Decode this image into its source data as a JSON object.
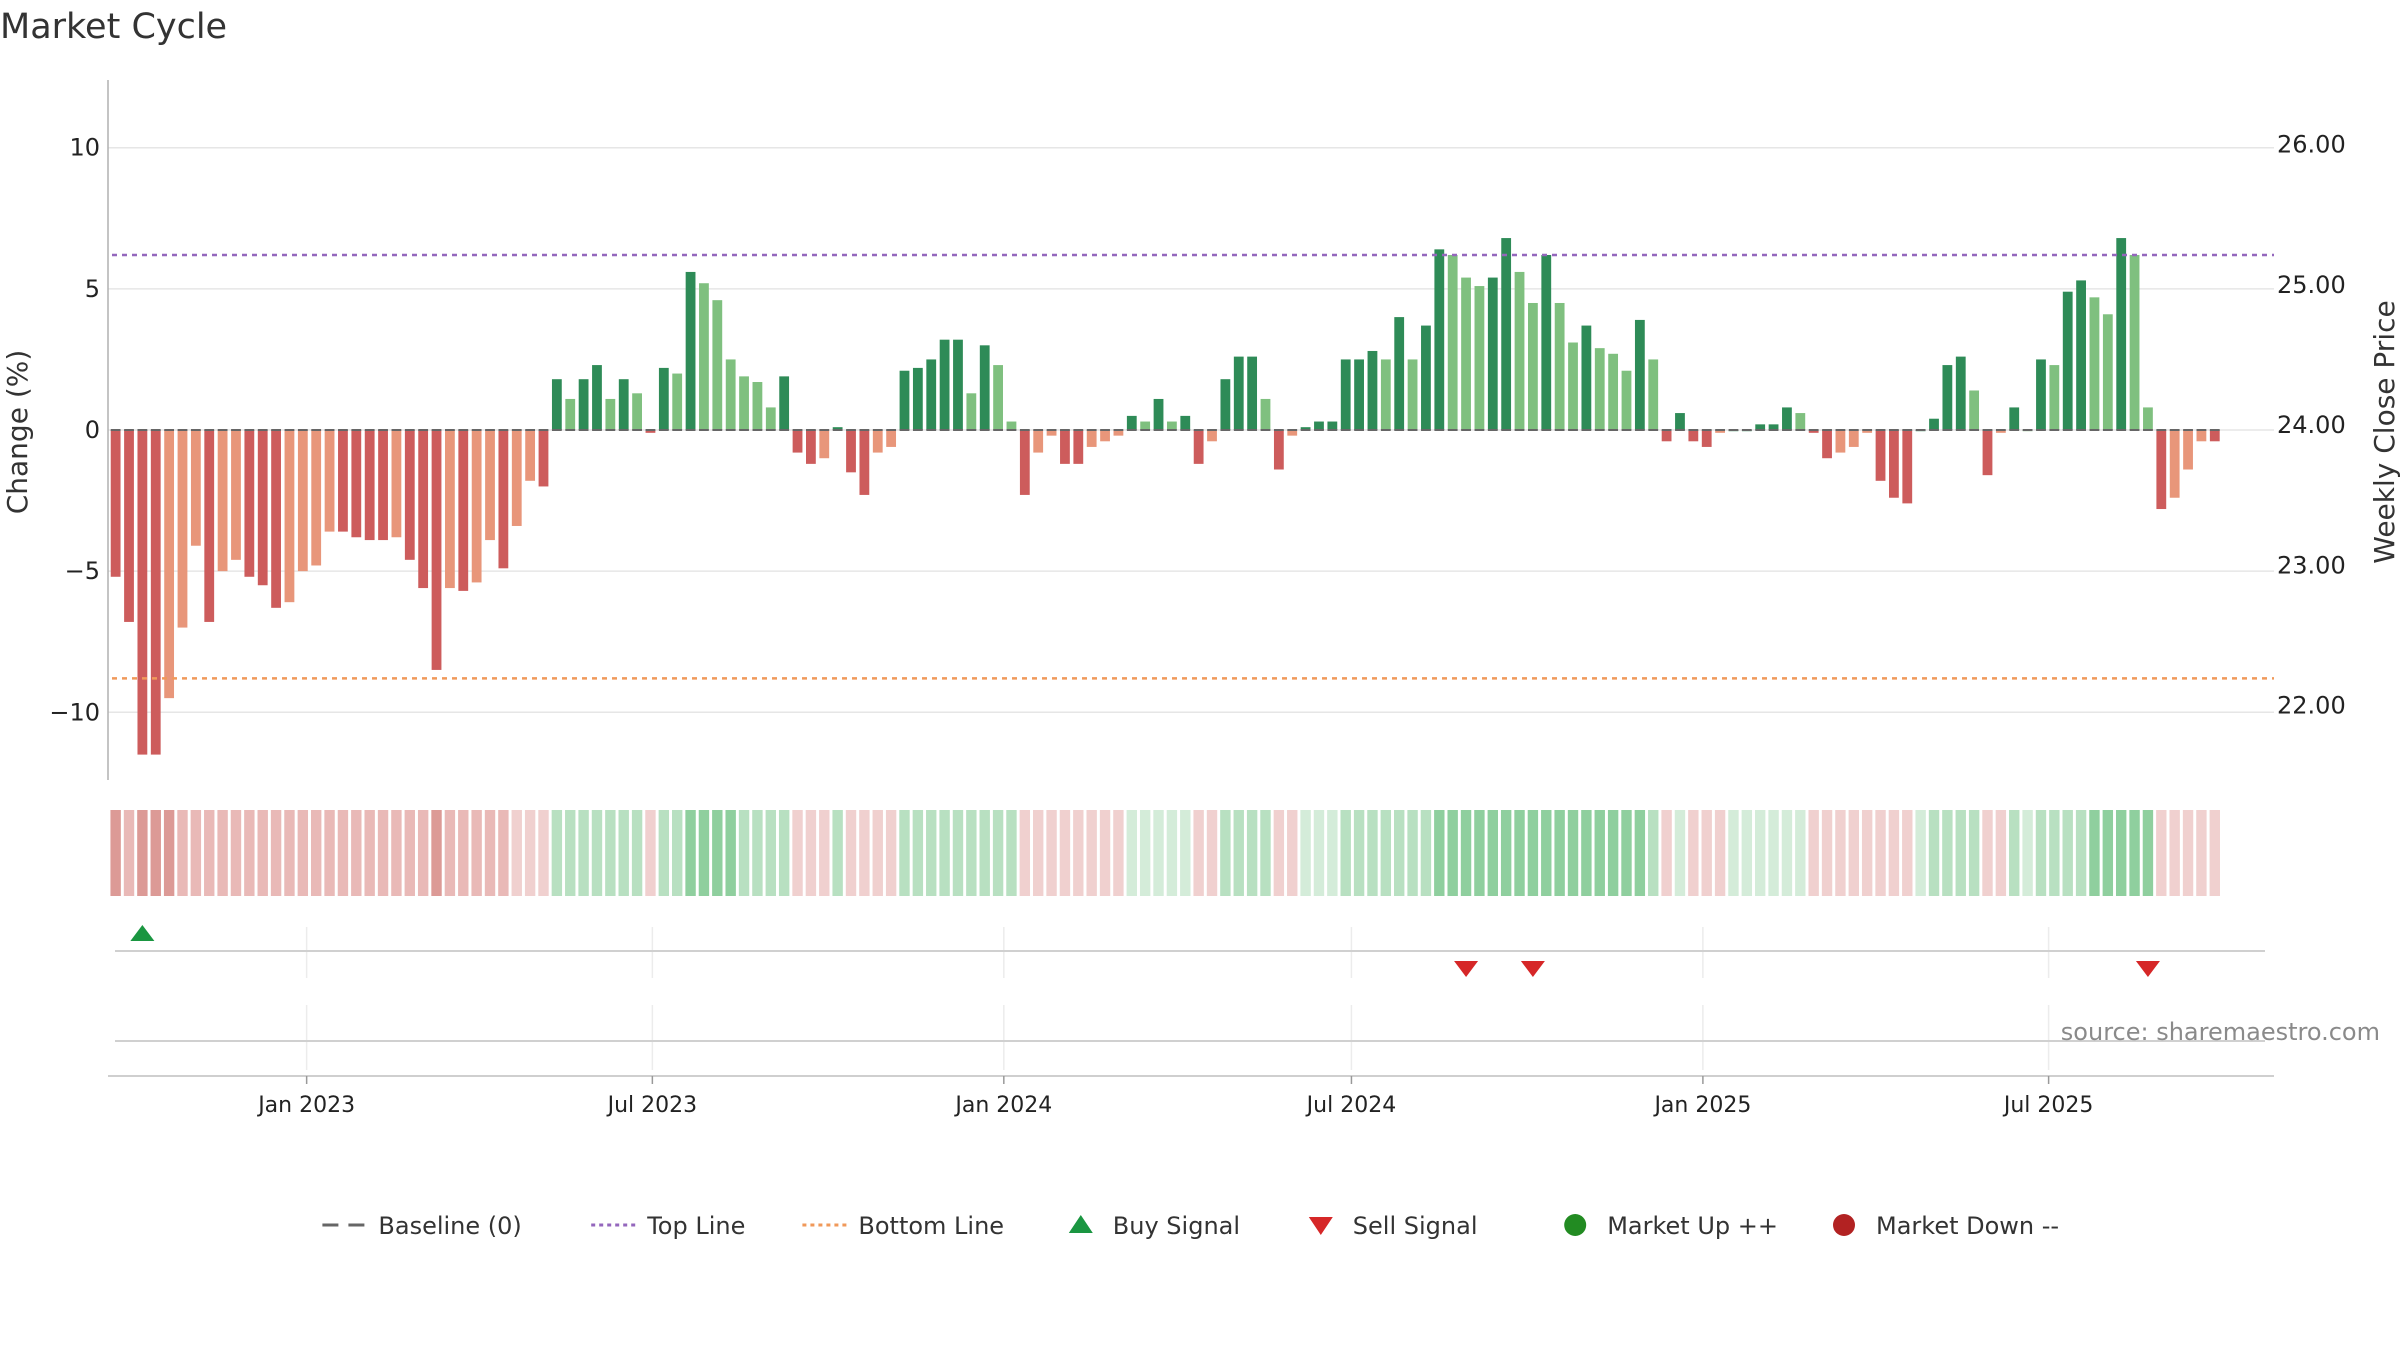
{
  "chart_data": {
    "type": "bar",
    "title": "Market Cycle",
    "ylabel_left": "Change (%)",
    "ylabel_right": "Weekly Close Price",
    "ylim_left": [
      -12.4,
      12.4
    ],
    "yticks_left": [
      10,
      5,
      0,
      -5,
      -10
    ],
    "ytick_labels_left": [
      "10",
      "5",
      "0",
      "−5",
      "−10"
    ],
    "ylim_right": [
      21.47,
      26.46
    ],
    "yticks_right": [
      26,
      25,
      24,
      23,
      22
    ],
    "ytick_labels_right": [
      "26.00",
      "25.00",
      "24.00",
      "23.00",
      "22.00"
    ],
    "top_line": 6.2,
    "bottom_line": -8.8,
    "xlim": [
      "2022-09-19",
      "2025-10-27"
    ],
    "x_ticks": [
      "2023-01-01",
      "2023-07-01",
      "2024-01-01",
      "2024-07-01",
      "2025-01-01",
      "2025-07-01"
    ],
    "x_tick_labels": [
      "Jan 2023",
      "Jul 2023",
      "Jan 2024",
      "Jul 2024",
      "Jan 2025",
      "Jul 2025"
    ],
    "first_week": "2022-09-23",
    "week_step_days": 7,
    "weekly_change_pct": [
      -5.2,
      -6.8,
      -11.5,
      -11.5,
      -9.5,
      -7.0,
      -4.1,
      -6.8,
      -5.0,
      -4.6,
      -5.2,
      -5.5,
      -6.3,
      -6.1,
      -5.0,
      -4.8,
      -3.6,
      -3.6,
      -3.8,
      -3.9,
      -3.9,
      -3.8,
      -4.6,
      -5.6,
      -8.5,
      -5.6,
      -5.7,
      -5.4,
      -3.9,
      -4.9,
      -3.4,
      -1.8,
      -2.0,
      1.8,
      1.1,
      1.8,
      2.3,
      1.1,
      1.8,
      1.3,
      -0.1,
      2.2,
      2.0,
      5.6,
      5.2,
      4.6,
      2.5,
      1.9,
      1.7,
      0.8,
      1.9,
      -0.8,
      -1.2,
      -1.0,
      0.1,
      -1.5,
      -2.3,
      -0.8,
      -0.6,
      2.1,
      2.2,
      2.5,
      3.2,
      3.2,
      1.3,
      3.0,
      2.3,
      0.3,
      -2.3,
      -0.8,
      -0.2,
      -1.2,
      -1.2,
      -0.6,
      -0.4,
      -0.2,
      0.5,
      0.3,
      1.1,
      0.3,
      0.5,
      -1.2,
      -0.4,
      1.8,
      2.6,
      2.6,
      1.1,
      -1.4,
      -0.2,
      0.1,
      0.3,
      0.3,
      2.5,
      2.5,
      2.8,
      2.5,
      4.0,
      2.5,
      3.7,
      6.4,
      6.2,
      5.4,
      5.1,
      5.4,
      6.8,
      5.6,
      4.5,
      6.2,
      4.5,
      3.1,
      3.7,
      2.9,
      2.7,
      2.1,
      3.9,
      2.5,
      -0.4,
      0.6,
      -0.4,
      -0.6,
      -0.1,
      0.0,
      0.0,
      0.2,
      0.2,
      0.8,
      0.6,
      -0.1,
      -1.0,
      -0.8,
      -0.6,
      -0.1,
      -1.8,
      -2.4,
      -2.6,
      0.0,
      0.4,
      2.3,
      2.6,
      1.4,
      -1.6,
      -0.1,
      0.8,
      0.0,
      2.5,
      2.3,
      4.9,
      5.3,
      4.7,
      4.1,
      6.8,
      6.2,
      0.8,
      -2.8,
      -2.4,
      -1.4,
      -0.4,
      -0.4
    ],
    "band_levels": [
      5,
      4,
      5,
      5,
      5,
      4,
      4,
      4,
      4,
      4,
      4,
      4,
      4,
      4,
      4,
      4,
      4,
      4,
      4,
      4,
      4,
      4,
      4,
      4,
      5,
      4,
      4,
      4,
      4,
      4,
      3,
      3,
      2,
      2,
      2,
      2,
      2,
      2,
      2,
      2,
      2,
      2,
      2,
      3,
      3,
      3,
      3,
      2,
      2,
      2,
      2,
      1,
      1,
      1,
      2,
      1,
      1,
      1,
      1,
      2,
      2,
      2,
      2,
      2,
      2,
      2,
      2,
      2,
      1,
      1,
      1,
      1,
      1,
      1,
      1,
      1,
      1,
      1,
      1,
      1,
      1,
      1,
      1,
      2,
      2,
      2,
      2,
      1,
      1,
      1,
      1,
      1,
      2,
      2,
      2,
      2,
      2,
      2,
      2,
      3,
      3,
      3,
      3,
      3,
      3,
      3,
      3,
      3,
      3,
      3,
      3,
      3,
      3,
      3,
      3,
      2,
      1,
      1,
      1,
      1,
      1,
      1,
      1,
      1,
      1,
      1,
      1,
      1,
      1,
      1,
      1,
      1,
      1,
      1,
      1,
      1,
      2,
      2,
      2,
      2,
      2,
      2,
      2,
      1,
      2,
      2,
      2,
      2,
      3,
      3,
      3,
      3,
      3,
      3,
      3,
      1,
      2,
      1,
      1,
      1,
      1
    ],
    "buy_signals": [
      "2022-10-07"
    ],
    "sell_signals": [
      "2024-08-30",
      "2024-10-04",
      "2025-08-22"
    ],
    "legend": [
      {
        "label": "Baseline (0)",
        "symbol": "dash",
        "color": "#666666"
      },
      {
        "label": "Top Line",
        "symbol": "dot",
        "color": "#9467bd"
      },
      {
        "label": "Bottom Line",
        "symbol": "dot",
        "color": "#f0995a"
      },
      {
        "label": "Buy Signal",
        "symbol": "triangle-up",
        "color": "#1a9641"
      },
      {
        "label": "Sell Signal",
        "symbol": "triangle-down",
        "color": "#d62728"
      },
      {
        "label": "Market Up ++",
        "symbol": "circle",
        "color": "#228b22"
      },
      {
        "label": "Market Down --",
        "symbol": "circle",
        "color": "#b22222"
      }
    ],
    "legend_placement": "bottom-center",
    "grid": true,
    "source": "source: sharemaestro.com",
    "colors": {
      "strong_up": "#2e8b57",
      "up": "#7fc07f",
      "down": "#e8967a",
      "strong_down": "#cd5c5c",
      "top_line": "#9467bd",
      "bottom_line": "#f0995a",
      "band_up": [
        "#d4ecd9",
        "#b8e0c1",
        "#8fcf9e"
      ],
      "band_down": [
        "#f0d0cf",
        "#e9b9b7",
        "#dc9a96"
      ]
    }
  }
}
